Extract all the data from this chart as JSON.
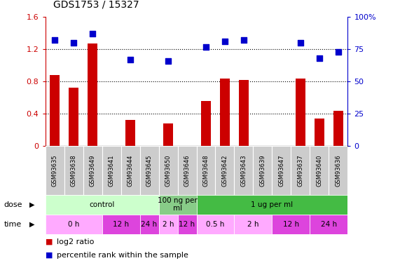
{
  "title": "GDS1753 / 15327",
  "samples": [
    "GSM93635",
    "GSM93638",
    "GSM93649",
    "GSM93641",
    "GSM93644",
    "GSM93645",
    "GSM93650",
    "GSM93646",
    "GSM93648",
    "GSM93642",
    "GSM93643",
    "GSM93639",
    "GSM93647",
    "GSM93637",
    "GSM93640",
    "GSM93636"
  ],
  "log2_ratio": [
    0.88,
    0.72,
    1.27,
    0.0,
    0.32,
    0.0,
    0.28,
    0.0,
    0.56,
    0.84,
    0.82,
    0.0,
    0.0,
    0.84,
    0.34,
    0.44
  ],
  "percentile_rank": [
    82,
    80,
    87,
    0,
    67,
    0,
    66,
    0,
    77,
    81,
    82,
    0,
    0,
    80,
    68,
    73
  ],
  "bar_color": "#cc0000",
  "scatter_color": "#0000cc",
  "ylim_left": [
    0,
    1.6
  ],
  "ylim_right": [
    0,
    100
  ],
  "yticks_left": [
    0,
    0.4,
    0.8,
    1.2,
    1.6
  ],
  "yticks_right": [
    0,
    25,
    50,
    75,
    100
  ],
  "ytick_labels_left": [
    "0",
    "0.4",
    "0.8",
    "1.2",
    "1.6"
  ],
  "ytick_labels_right": [
    "0",
    "25",
    "50",
    "75",
    "100%"
  ],
  "dose_groups": [
    {
      "label": "control",
      "start": 0,
      "end": 6,
      "color": "#ccffcc"
    },
    {
      "label": "100 ng per\nml",
      "start": 6,
      "end": 8,
      "color": "#88cc88"
    },
    {
      "label": "1 ug per ml",
      "start": 8,
      "end": 16,
      "color": "#44bb44"
    }
  ],
  "time_groups": [
    {
      "label": "0 h",
      "start": 0,
      "end": 3,
      "color": "#ffaaff"
    },
    {
      "label": "12 h",
      "start": 3,
      "end": 5,
      "color": "#dd44dd"
    },
    {
      "label": "24 h",
      "start": 5,
      "end": 6,
      "color": "#dd44dd"
    },
    {
      "label": "2 h",
      "start": 6,
      "end": 7,
      "color": "#ffaaff"
    },
    {
      "label": "12 h",
      "start": 7,
      "end": 8,
      "color": "#dd44dd"
    },
    {
      "label": "0.5 h",
      "start": 8,
      "end": 10,
      "color": "#ffaaff"
    },
    {
      "label": "2 h",
      "start": 10,
      "end": 12,
      "color": "#ffaaff"
    },
    {
      "label": "12 h",
      "start": 12,
      "end": 14,
      "color": "#dd44dd"
    },
    {
      "label": "24 h",
      "start": 14,
      "end": 16,
      "color": "#dd44dd"
    }
  ],
  "dose_label": "dose",
  "time_label": "time",
  "legend_items": [
    {
      "color": "#cc0000",
      "label": "log2 ratio"
    },
    {
      "color": "#0000cc",
      "label": "percentile rank within the sample"
    }
  ],
  "sample_box_color": "#cccccc",
  "sample_box_edge": "#999999"
}
